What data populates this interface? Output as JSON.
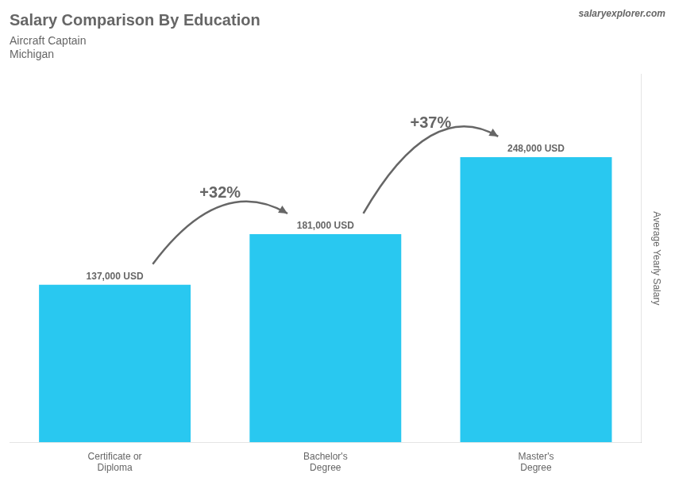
{
  "chart_data": {
    "type": "bar",
    "title": "Salary Comparison By Education",
    "subtitle": [
      "Aircraft Captain",
      "Michigan"
    ],
    "source": "salaryexplorer.com",
    "ylabel": "Average Yearly Salary",
    "categories": [
      "Certificate or\nDiploma",
      "Bachelor's\nDegree",
      "Master's\nDegree"
    ],
    "values": [
      137000,
      181000,
      248000
    ],
    "value_labels": [
      "137,000 USD",
      "181,000 USD",
      "248,000 USD"
    ],
    "data_labels": true,
    "color": "#29c8f0",
    "ylim": [
      0,
      320000
    ],
    "grid": false,
    "tick_labels": "x",
    "annotations": [
      {
        "text": "+32%",
        "from": "Certificate or\nDiploma",
        "to": "Bachelor's\nDegree"
      },
      {
        "text": "+37%",
        "from": "Bachelor's\nDegree",
        "to": "Master's\nDegree"
      }
    ]
  }
}
